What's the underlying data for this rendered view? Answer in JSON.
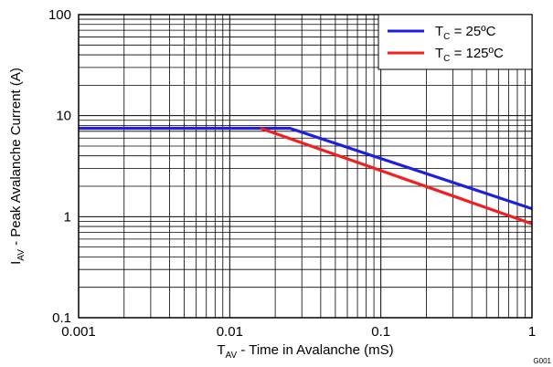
{
  "chart_data": {
    "type": "line",
    "x_scale": "log",
    "y_scale": "log",
    "xlim": [
      0.001,
      1
    ],
    "ylim": [
      0.1,
      100
    ],
    "grid": true,
    "legend_position": "top-right",
    "xlabel": {
      "main": "T",
      "sub": "AV",
      "rest": " - Time in Avalanche (mS)"
    },
    "ylabel": {
      "main": "I",
      "sub": "AV",
      "rest": " - Peak Avalanche Current (A)"
    },
    "x_ticks": [
      {
        "value": 0.001,
        "label": "0.001"
      },
      {
        "value": 0.01,
        "label": "0.01"
      },
      {
        "value": 0.1,
        "label": "0.1"
      },
      {
        "value": 1,
        "label": "1"
      }
    ],
    "y_ticks": [
      {
        "value": 0.1,
        "label": "0.1"
      },
      {
        "value": 1,
        "label": "1"
      },
      {
        "value": 10,
        "label": "10"
      },
      {
        "value": 100,
        "label": "100"
      }
    ],
    "series": [
      {
        "name": "TC = 25ºC",
        "legend": {
          "main": "T",
          "sub": "C",
          "rest": " = 25ºC"
        },
        "color": "#1f1fe0",
        "x": [
          0.001,
          0.025,
          1
        ],
        "y": [
          7.5,
          7.5,
          1.2
        ]
      },
      {
        "name": "TC = 125ºC",
        "legend": {
          "main": "T",
          "sub": "C",
          "rest": " = 125ºC"
        },
        "color": "#f02020",
        "x": [
          0.016,
          1
        ],
        "y": [
          7.5,
          0.85
        ]
      }
    ],
    "figure_id": "G001"
  }
}
